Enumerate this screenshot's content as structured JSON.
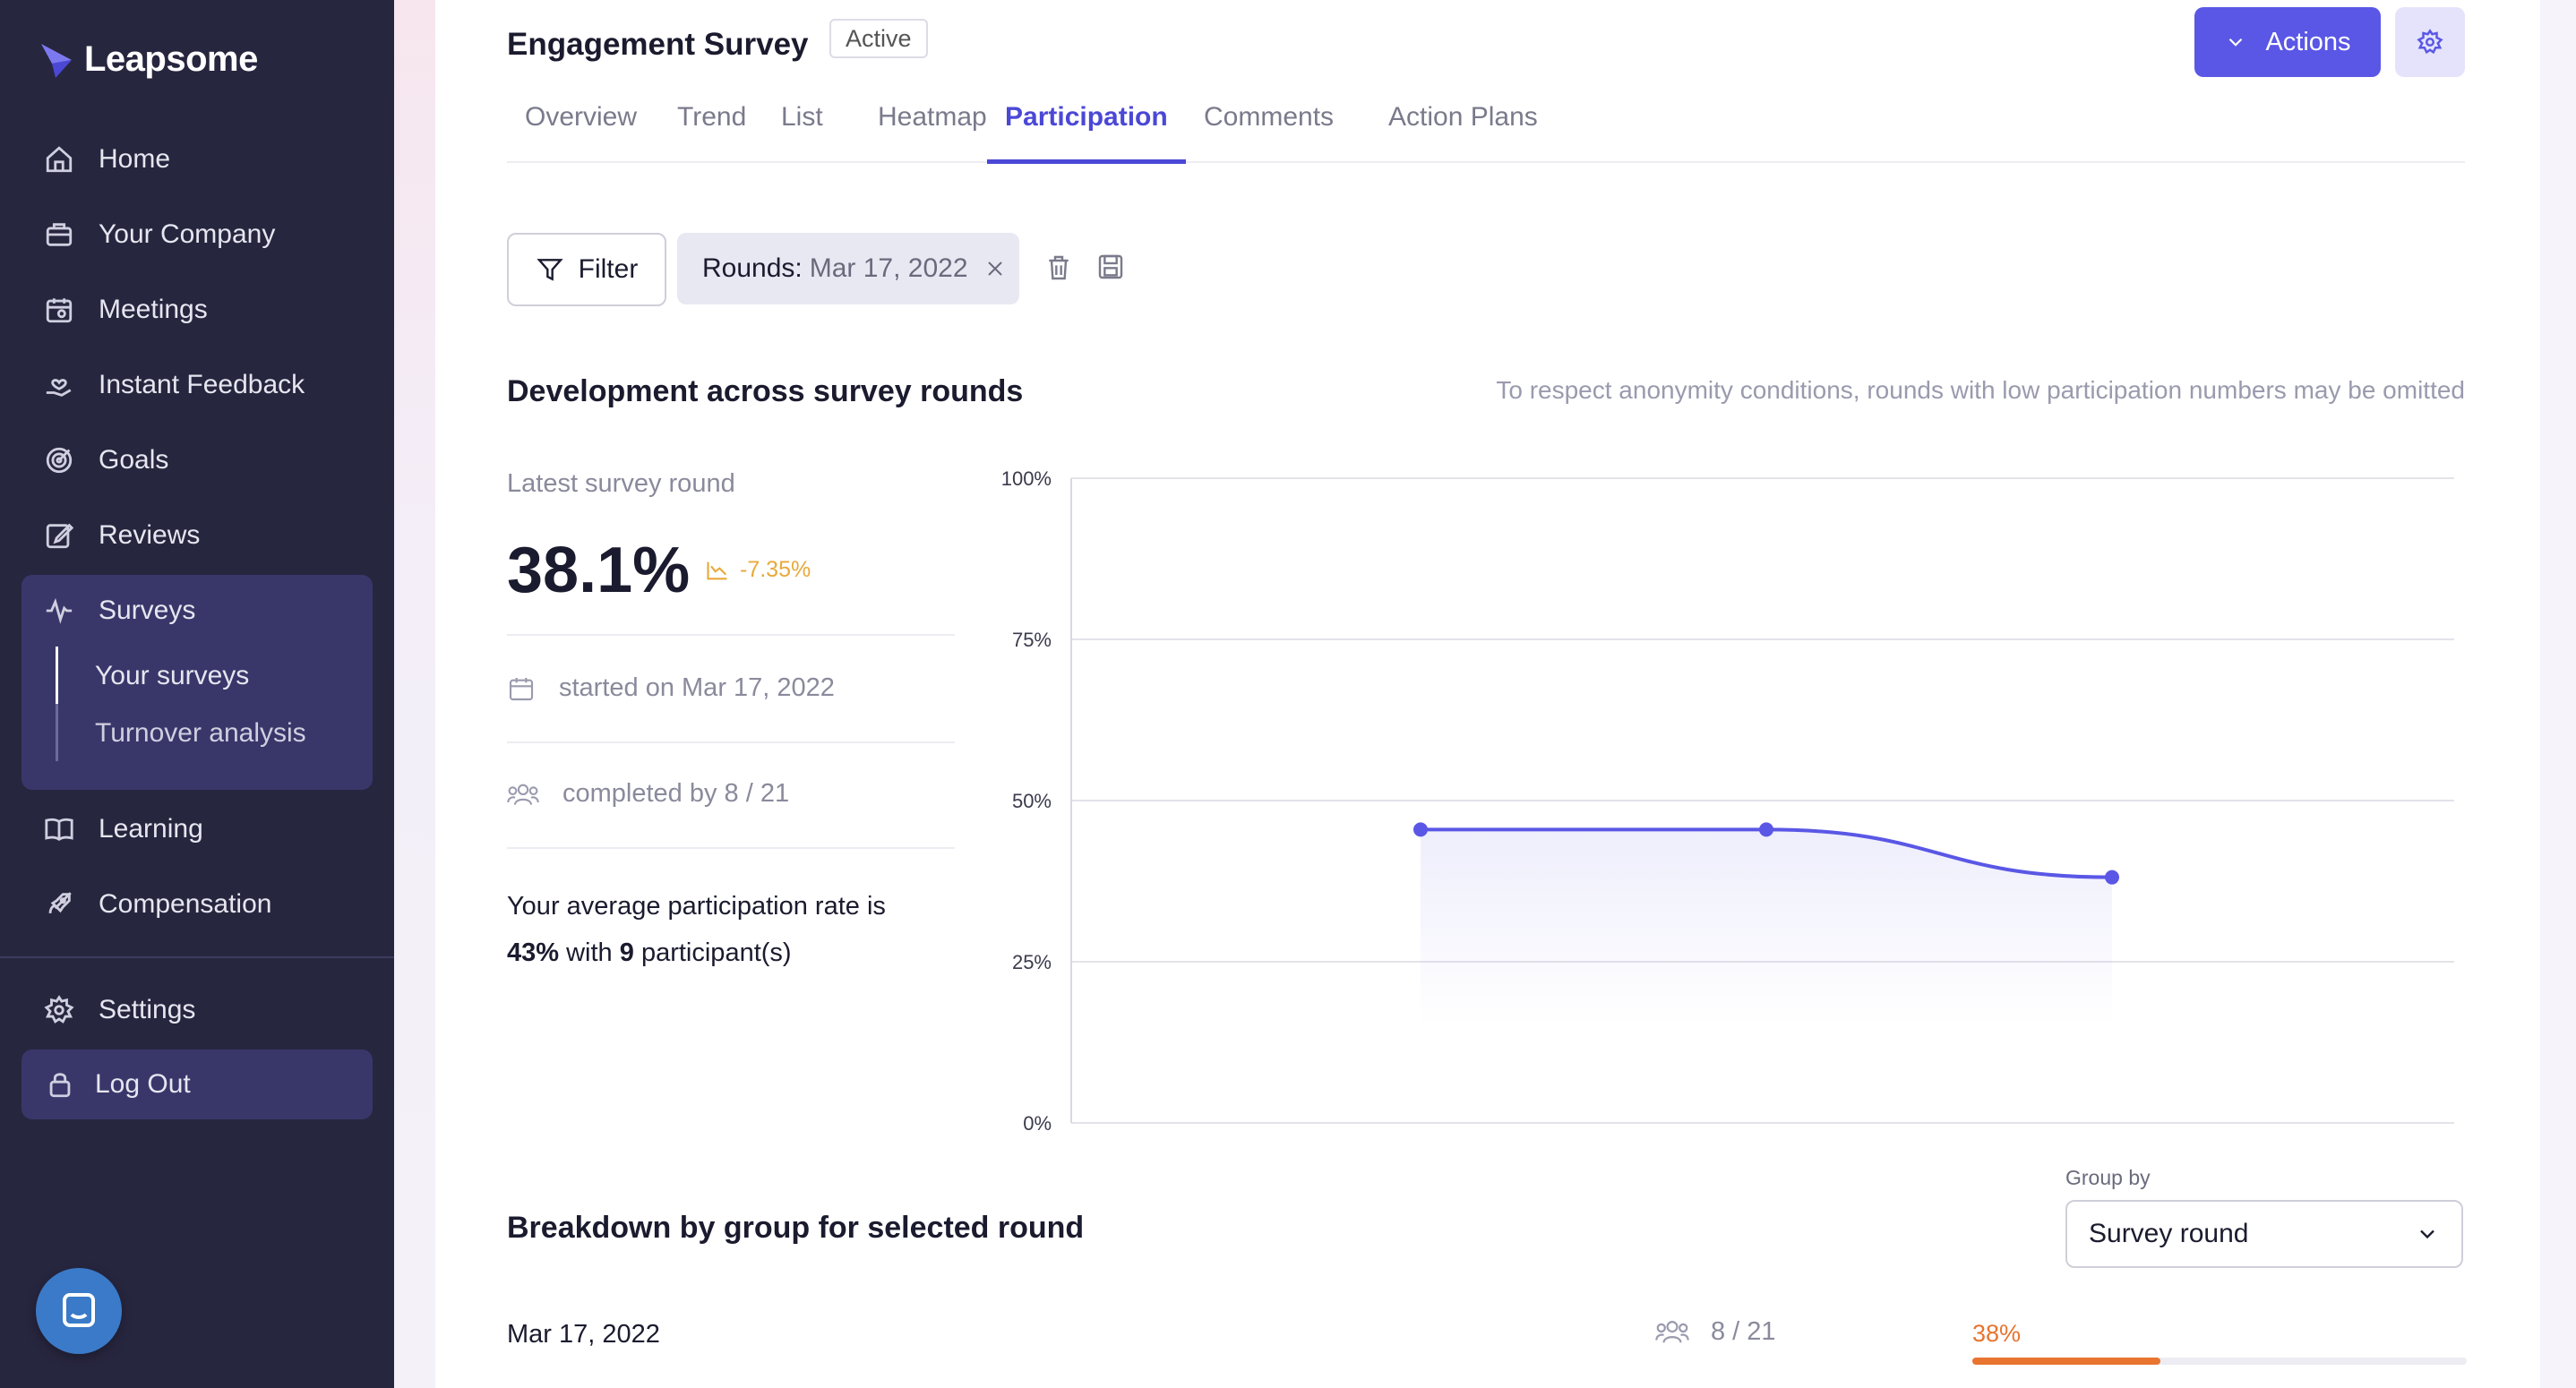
{
  "app": {
    "name": "Leapsome"
  },
  "sidebar": {
    "items": [
      {
        "label": "Home",
        "icon": "home-icon"
      },
      {
        "label": "Your Company",
        "icon": "briefcase-icon"
      },
      {
        "label": "Meetings",
        "icon": "calendar-icon"
      },
      {
        "label": "Instant Feedback",
        "icon": "hand-heart-icon"
      },
      {
        "label": "Goals",
        "icon": "target-icon"
      },
      {
        "label": "Reviews",
        "icon": "edit-icon"
      },
      {
        "label": "Surveys",
        "icon": "pulse-icon"
      },
      {
        "label": "Learning",
        "icon": "book-icon"
      },
      {
        "label": "Compensation",
        "icon": "rocket-icon"
      }
    ],
    "surveys_sub": [
      "Your surveys",
      "Turnover analysis"
    ],
    "settings": "Settings",
    "logout": "Log Out"
  },
  "header": {
    "title": "Engagement Survey",
    "status": "Active",
    "actions_label": "Actions"
  },
  "tabs": [
    "Overview",
    "Trend",
    "List",
    "Heatmap",
    "Participation",
    "Comments",
    "Action Plans"
  ],
  "active_tab": "Participation",
  "filters": {
    "filter_label": "Filter",
    "chip_key": "Rounds:",
    "chip_value": "Mar 17, 2022"
  },
  "development": {
    "heading": "Development across survey rounds",
    "note": "To respect anonymity conditions, rounds with low participation numbers may be omitted",
    "latest_label": "Latest survey round",
    "latest_value": "38.1%",
    "delta": "-7.35%",
    "started": "started on Mar 17, 2022",
    "completed": "completed by 8 / 21",
    "avg_prefix": "Your average participation rate is",
    "avg_rate": "43%",
    "avg_mid": "with",
    "avg_count": "9",
    "avg_suffix": "participant(s)"
  },
  "chart_data": {
    "type": "area",
    "y_ticks": [
      "100%",
      "75%",
      "50%",
      "25%",
      "0%"
    ],
    "ylim": [
      0,
      100
    ],
    "values": [
      45.5,
      45.5,
      38.1
    ],
    "color": "#5a57e6",
    "grid": true
  },
  "breakdown": {
    "heading": "Breakdown by group for selected round",
    "group_by_label": "Group by",
    "group_by_value": "Survey round",
    "rows": [
      {
        "label": "Mar 17, 2022",
        "count": "8 / 21",
        "pct_label": "38%",
        "pct": 0.38
      }
    ]
  },
  "colors": {
    "sidebar": "#27263f",
    "accent": "#5a57e6",
    "active_tab": "#4b48d6",
    "bar": "#e8742f",
    "delta": "#e8a93a"
  }
}
